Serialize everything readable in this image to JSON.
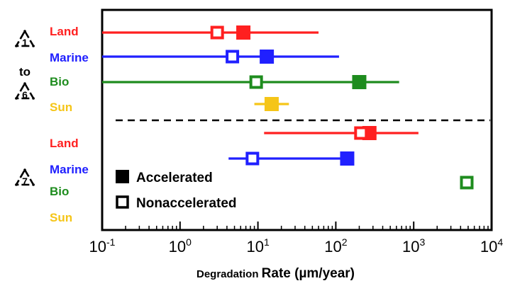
{
  "chart_data": {
    "type": "scatter",
    "xlabel": "Degradation Rate (µm/year)",
    "xlabel_parts": [
      "Degradation",
      "Rate (µm/year)"
    ],
    "xscale": "log",
    "xlim": [
      0.1,
      10000
    ],
    "xticks": [
      {
        "base": "10",
        "exp": "-1"
      },
      {
        "base": "10",
        "exp": "0"
      },
      {
        "base": "10",
        "exp": "1"
      },
      {
        "base": "10",
        "exp": "2"
      },
      {
        "base": "10",
        "exp": "3"
      },
      {
        "base": "10",
        "exp": "4"
      }
    ],
    "group_labels": [
      {
        "top": "1",
        "middle": "to",
        "bottom": "6"
      },
      {
        "top": "7"
      }
    ],
    "environments": [
      {
        "name": "Land",
        "color": "#ff2020"
      },
      {
        "name": "Marine",
        "color": "#2020ff"
      },
      {
        "name": "Bio",
        "color": "#1e8c1e"
      },
      {
        "name": "Sun",
        "color": "#f5c518"
      }
    ],
    "legend": {
      "placement": "lower-left",
      "accelerated": "Accelerated",
      "nonaccelerated": "Nonaccelerated"
    },
    "groups": [
      {
        "plastic_codes": "1-6",
        "rows": [
          {
            "environment": "Land",
            "range": [
              0.1,
              60
            ],
            "accelerated": 6.5,
            "nonaccelerated": 3.0
          },
          {
            "environment": "Marine",
            "range": [
              0.1,
              110
            ],
            "accelerated": 13,
            "nonaccelerated": 4.7
          },
          {
            "environment": "Bio",
            "range": [
              0.1,
              650
            ],
            "accelerated": 200,
            "nonaccelerated": 9.5
          },
          {
            "environment": "Sun",
            "range": [
              9,
              25
            ],
            "accelerated": 15,
            "nonaccelerated": null
          }
        ]
      },
      {
        "plastic_codes": "7",
        "rows": [
          {
            "environment": "Land",
            "range": [
              12,
              1150
            ],
            "accelerated": 270,
            "nonaccelerated": 210
          },
          {
            "environment": "Marine",
            "range": [
              4.2,
              140
            ],
            "accelerated": 140,
            "nonaccelerated": 8.5
          },
          {
            "environment": "Bio",
            "range": null,
            "accelerated": null,
            "nonaccelerated": 4800
          },
          {
            "environment": "Sun",
            "range": null,
            "accelerated": null,
            "nonaccelerated": null
          }
        ]
      }
    ]
  }
}
